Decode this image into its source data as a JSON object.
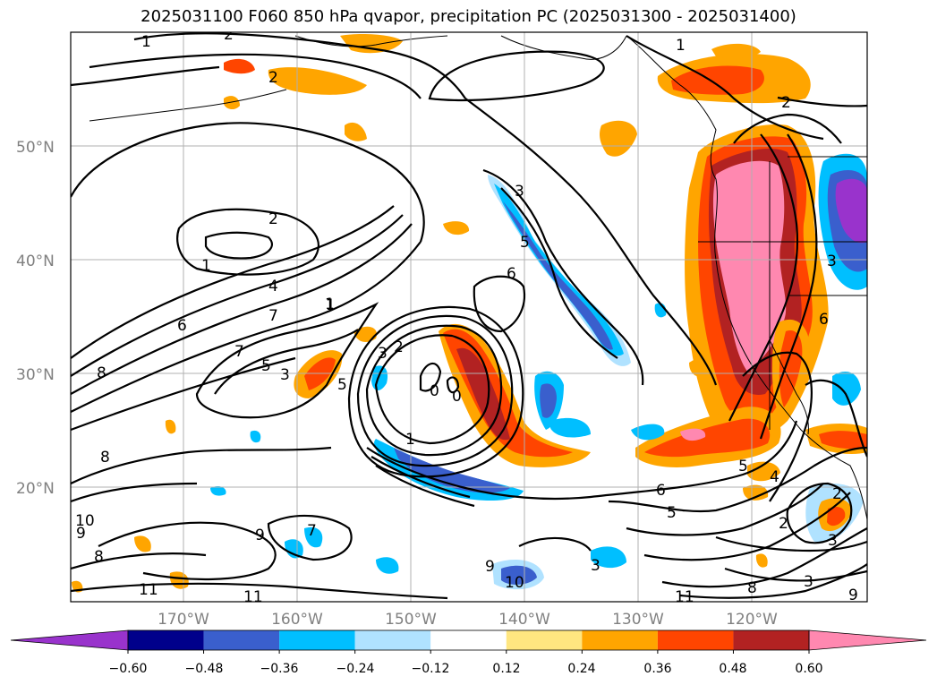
{
  "title": "2025031100 F060 850 hPa qvapor, precipitation PC (2025031300 - 2025031400)",
  "lat_labels": [
    "50°N",
    "40°N",
    "30°N",
    "20°N"
  ],
  "lon_labels": [
    "170°W",
    "160°W",
    "150°W",
    "140°W",
    "130°W",
    "120°W"
  ],
  "colorbar": {
    "ticks": [
      "−0.60",
      "−0.48",
      "−0.36",
      "−0.24",
      "−0.12",
      "0.12",
      "0.24",
      "0.36",
      "0.48",
      "0.60"
    ],
    "colors": [
      "#9933cc",
      "#00008b",
      "#3a5fcd",
      "#00bfff",
      "#b0e2ff",
      "#ffffff",
      "#ffe680",
      "#ffa500",
      "#ff4500",
      "#b22222",
      "#ff88b0"
    ],
    "extend": "both"
  },
  "contour_labels": [
    "1",
    "2",
    "2",
    "1",
    "4",
    "7",
    "6",
    "8",
    "7",
    "5",
    "3",
    "5",
    "3",
    "2",
    "0",
    "0",
    "1",
    "6",
    "3",
    "5",
    "1",
    "8",
    "7",
    "9",
    "10",
    "8",
    "9",
    "11",
    "9",
    "10",
    "11",
    "6",
    "5",
    "5",
    "4",
    "2",
    "3",
    "2",
    "3",
    "8",
    "9",
    "11",
    "1",
    "2",
    "3",
    "1",
    "6",
    "2",
    "3"
  ]
}
